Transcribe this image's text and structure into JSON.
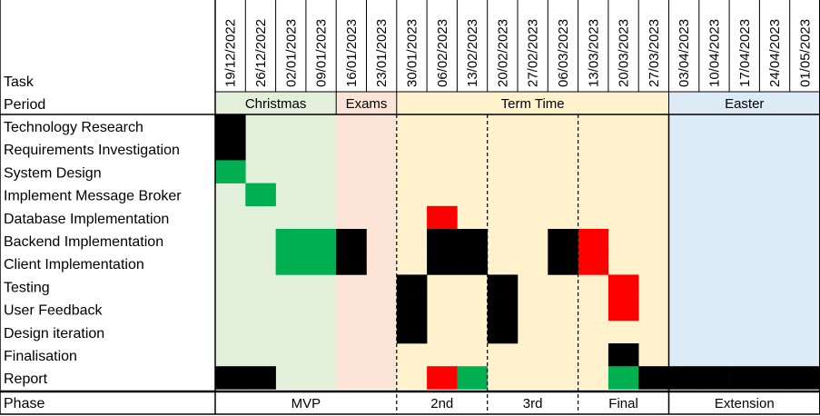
{
  "chart_data": {
    "type": "gantt",
    "header": {
      "task_label": "Task",
      "period_label": "Period",
      "phase_label": "Phase"
    },
    "weeks": [
      "19/12/2022",
      "26/12/2022",
      "02/01/2023",
      "09/01/2023",
      "16/01/2023",
      "23/01/2023",
      "30/01/2023",
      "06/02/2023",
      "13/02/2023",
      "20/02/2023",
      "27/02/2023",
      "06/03/2023",
      "13/03/2023",
      "20/03/2023",
      "27/03/2023",
      "03/04/2023",
      "10/04/2023",
      "17/04/2023",
      "24/04/2023",
      "01/05/2023"
    ],
    "periods": [
      {
        "label": "Christmas",
        "start": 0,
        "end": 3,
        "color": "#e2efda"
      },
      {
        "label": "Exams",
        "start": 4,
        "end": 5,
        "color": "#fce4d6"
      },
      {
        "label": "Term Time",
        "start": 6,
        "end": 14,
        "color": "#fff2cc"
      },
      {
        "label": "Easter",
        "start": 15,
        "end": 19,
        "color": "#ddebf7"
      }
    ],
    "phases": [
      {
        "label": "MVP",
        "start": 0,
        "end": 5
      },
      {
        "label": "2nd",
        "start": 6,
        "end": 8
      },
      {
        "label": "3rd",
        "start": 9,
        "end": 11
      },
      {
        "label": "Final",
        "start": 12,
        "end": 14
      },
      {
        "label": "Extension",
        "start": 15,
        "end": 19
      }
    ],
    "status_colors": {
      "black": "#000000",
      "green": "#00b050",
      "red": "#ff0000"
    },
    "tasks": [
      {
        "name": "Technology Research",
        "cells": [
          [
            0,
            "black"
          ]
        ]
      },
      {
        "name": "Requirements Investigation",
        "cells": [
          [
            0,
            "black"
          ]
        ]
      },
      {
        "name": "System Design",
        "cells": [
          [
            0,
            "green"
          ]
        ]
      },
      {
        "name": "Implement Message Broker",
        "cells": [
          [
            1,
            "green"
          ]
        ]
      },
      {
        "name": "Database Implementation",
        "cells": [
          [
            7,
            "red"
          ]
        ]
      },
      {
        "name": "Backend Implementation",
        "cells": [
          [
            2,
            "green"
          ],
          [
            3,
            "green"
          ],
          [
            4,
            "black"
          ],
          [
            7,
            "black"
          ],
          [
            8,
            "black"
          ],
          [
            11,
            "black"
          ],
          [
            12,
            "red"
          ]
        ]
      },
      {
        "name": "Client Implementation",
        "cells": [
          [
            2,
            "green"
          ],
          [
            3,
            "green"
          ],
          [
            4,
            "black"
          ],
          [
            7,
            "black"
          ],
          [
            8,
            "black"
          ],
          [
            11,
            "black"
          ],
          [
            12,
            "red"
          ]
        ]
      },
      {
        "name": "Testing",
        "cells": [
          [
            6,
            "black"
          ],
          [
            9,
            "black"
          ],
          [
            13,
            "red"
          ]
        ]
      },
      {
        "name": "User Feedback",
        "cells": [
          [
            6,
            "black"
          ],
          [
            9,
            "black"
          ],
          [
            13,
            "red"
          ]
        ]
      },
      {
        "name": "Design iteration",
        "cells": [
          [
            6,
            "black"
          ],
          [
            9,
            "black"
          ]
        ]
      },
      {
        "name": "Finalisation",
        "cells": [
          [
            13,
            "black"
          ]
        ]
      },
      {
        "name": "Report",
        "cells": [
          [
            0,
            "black"
          ],
          [
            1,
            "black"
          ],
          [
            7,
            "red"
          ],
          [
            8,
            "green"
          ],
          [
            13,
            "green"
          ],
          [
            14,
            "black"
          ],
          [
            15,
            "black"
          ],
          [
            16,
            "black"
          ],
          [
            17,
            "black"
          ],
          [
            18,
            "black"
          ],
          [
            19,
            "black"
          ]
        ]
      }
    ]
  }
}
